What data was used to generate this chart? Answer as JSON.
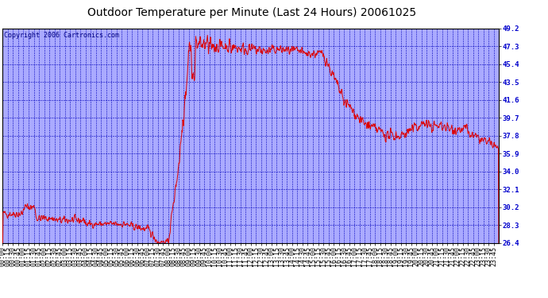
{
  "title": "Outdoor Temperature per Minute (Last 24 Hours) 20061025",
  "copyright_text": "Copyright 2006 Cartronics.com",
  "y_ticks": [
    26.4,
    28.3,
    30.2,
    32.1,
    34.0,
    35.9,
    37.8,
    39.7,
    41.6,
    43.5,
    45.4,
    47.3,
    49.2
  ],
  "ylim": [
    26.4,
    49.2
  ],
  "background_color": "#FFFFFF",
  "plot_background_color": "#AAAAFF",
  "grid_color": "#0000BB",
  "line_color": "#DD0000",
  "title_color": "#000000",
  "border_color": "#000000",
  "title_fontsize": 10,
  "tick_fontsize": 6,
  "copyright_fontsize": 6
}
